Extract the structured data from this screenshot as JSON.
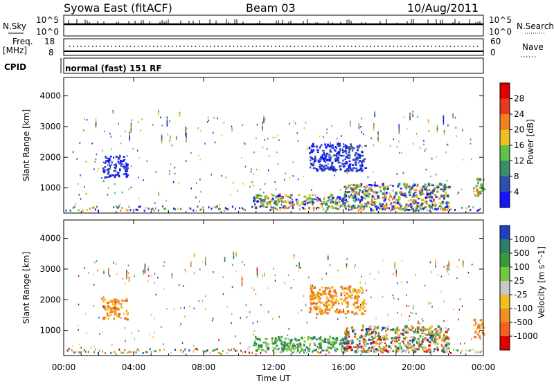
{
  "header": {
    "title": "Syowa East (fitACF)",
    "beam": "Beam 03",
    "date": "10/Aug/2011"
  },
  "status_panels": {
    "nsky_label": "N.Sky",
    "nsky_top": "10^5",
    "nsky_bottom": "10^0",
    "nsearch_label": "N.Search",
    "nsearch_top": "10^5",
    "nsearch_bottom": "10^0",
    "freq_label": "Freq.",
    "freq_unit": "[MHz]",
    "freq_top": "18",
    "freq_bottom": "8",
    "nave_label": "Nave",
    "nave_top": "60",
    "nave_bottom": "0",
    "cpid_label": "CPID",
    "cpid_text": "normal (fast) 151 RF"
  },
  "chart_data": [
    {
      "type": "heatmap",
      "name": "power",
      "xlabel": "",
      "ylabel": "Slant Range [km]",
      "x_ticks": [
        "00:00",
        "04:00",
        "08:00",
        "12:00",
        "16:00",
        "20:00",
        "00:00"
      ],
      "x_hours": [
        0,
        4,
        8,
        12,
        16,
        20,
        24
      ],
      "xlim": [
        0,
        24
      ],
      "y_ticks": [
        1000,
        2000,
        3000,
        4000
      ],
      "ylim": [
        180,
        4600
      ],
      "colorbar": {
        "label": "Power [dB]",
        "ticks": [
          "4",
          "8",
          "12",
          "16",
          "20",
          "24",
          "28"
        ],
        "colors": [
          "#1414ff",
          "#2e4fb0",
          "#3a8c6a",
          "#5ec24a",
          "#f0c020",
          "#f08020",
          "#e83a1a",
          "#e00000"
        ]
      },
      "echo_regions": [
        {
          "t0": 10.8,
          "t1": 16.2,
          "r0": 300,
          "r1": 750,
          "level": "mixed"
        },
        {
          "t0": 16.0,
          "t1": 22.0,
          "r0": 250,
          "r1": 1100,
          "level": "mixed"
        },
        {
          "t0": 14.0,
          "t1": 17.2,
          "r0": 1500,
          "r1": 2400,
          "level": "low"
        },
        {
          "t0": 2.2,
          "t1": 3.6,
          "r0": 1300,
          "r1": 2000,
          "level": "low"
        },
        {
          "t0": 23.4,
          "t1": 24.0,
          "r0": 700,
          "r1": 1300,
          "level": "mid"
        }
      ]
    },
    {
      "type": "heatmap",
      "name": "velocity",
      "xlabel": "Time UT",
      "ylabel": "Slant Range [km]",
      "x_ticks": [
        "00:00",
        "04:00",
        "08:00",
        "12:00",
        "16:00",
        "20:00",
        "00:00"
      ],
      "x_hours": [
        0,
        4,
        8,
        12,
        16,
        20,
        24
      ],
      "xlim": [
        0,
        24
      ],
      "y_ticks": [
        1000,
        2000,
        3000,
        4000
      ],
      "ylim": [
        180,
        4600
      ],
      "colorbar": {
        "label": "Velocity [m s^-1]",
        "ticks": [
          "1000",
          "500",
          "100",
          "25",
          "-25",
          "-100",
          "-500",
          "-1000"
        ],
        "colors": [
          "#2040c0",
          "#2e7d6a",
          "#3a9a3a",
          "#70c840",
          "#c8c8c8",
          "#f0c020",
          "#f09020",
          "#f06020",
          "#e00000"
        ]
      },
      "echo_regions": [
        {
          "t0": 10.8,
          "t1": 16.2,
          "r0": 300,
          "r1": 750,
          "level": "toward"
        },
        {
          "t0": 16.0,
          "t1": 22.0,
          "r0": 250,
          "r1": 1100,
          "level": "mixed"
        },
        {
          "t0": 14.0,
          "t1": 17.2,
          "r0": 1500,
          "r1": 2400,
          "level": "away"
        },
        {
          "t0": 2.2,
          "t1": 3.6,
          "r0": 1300,
          "r1": 2000,
          "level": "away"
        },
        {
          "t0": 23.4,
          "t1": 24.0,
          "r0": 700,
          "r1": 1300,
          "level": "away"
        }
      ]
    }
  ]
}
